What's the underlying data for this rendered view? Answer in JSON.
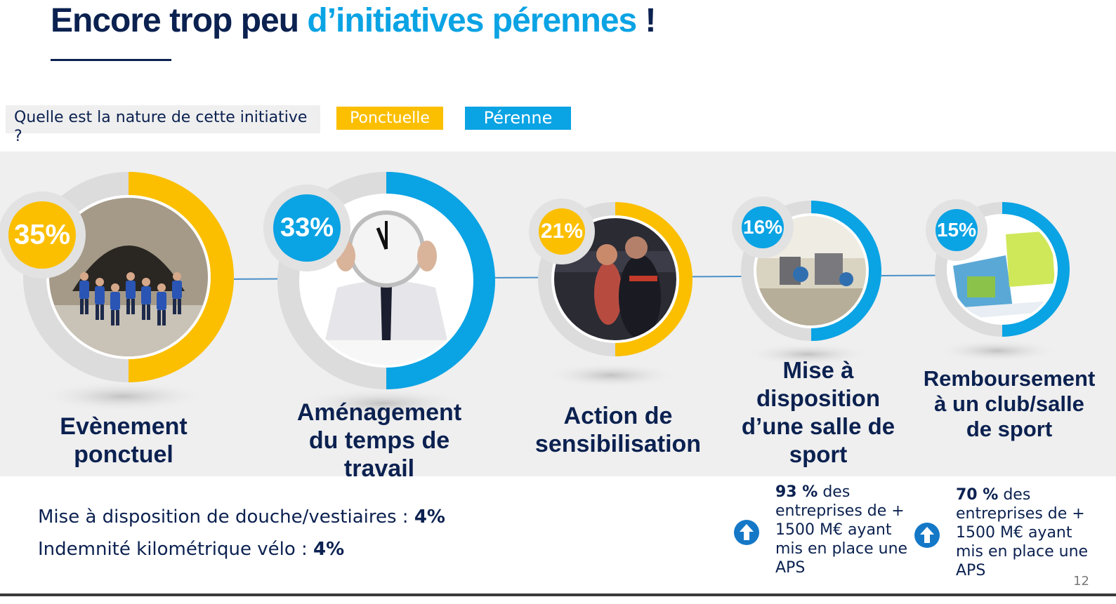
{
  "title": {
    "part1": "Encore trop peu ",
    "part2": "d’initiatives pérennes",
    "part3": " !"
  },
  "question": "Quelle est la nature de cette initiative ?",
  "legend": {
    "ponctuelle": "Ponctuelle",
    "perenne": "Pérenne"
  },
  "colors": {
    "ponctuelle": "#fbbf00",
    "perenne": "#0aa3e4",
    "navy": "#0b2150",
    "ring_gray": "#dcdcdc"
  },
  "initiatives": [
    {
      "pct": "35%",
      "value": 35,
      "type": "Ponctuelle",
      "label_lines": [
        "Evènement",
        "ponctuel"
      ],
      "image": "runners-photo"
    },
    {
      "pct": "33%",
      "value": 33,
      "type": "Pérenne",
      "label_lines": [
        "Aménagement",
        "du temps de",
        "travail"
      ],
      "image": "clock-face-person-photo"
    },
    {
      "pct": "21%",
      "value": 21,
      "type": "Ponctuelle",
      "label_lines": [
        "Action de",
        "sensibilisation"
      ],
      "image": "fitness-coach-photo"
    },
    {
      "pct": "16%",
      "value": 16,
      "type": "Pérenne",
      "label_lines": [
        "Mise à",
        "disposition",
        "d’une salle de",
        "sport"
      ],
      "image": "gym-room-photo"
    },
    {
      "pct": "15%",
      "value": 15,
      "type": "Pérenne",
      "label_lines": [
        "Remboursement",
        "à un club/salle",
        "de sport"
      ],
      "image": "club-brochure-photo"
    }
  ],
  "others": [
    {
      "label": "Mise à disposition de douche/vestiaires : ",
      "value": "4%"
    },
    {
      "label": "Indemnité kilométrique vélo : ",
      "value": "4%"
    }
  ],
  "stats": [
    {
      "bold": "93 %",
      "rest": " des entreprises de + 1500 M€ ayant mis en place une APS",
      "icon": "arrow-up-icon"
    },
    {
      "bold": "70 %",
      "rest": " des entreprises de + 1500 M€ ayant mis en place une APS",
      "icon": "arrow-up-icon"
    }
  ],
  "page_number": "12"
}
